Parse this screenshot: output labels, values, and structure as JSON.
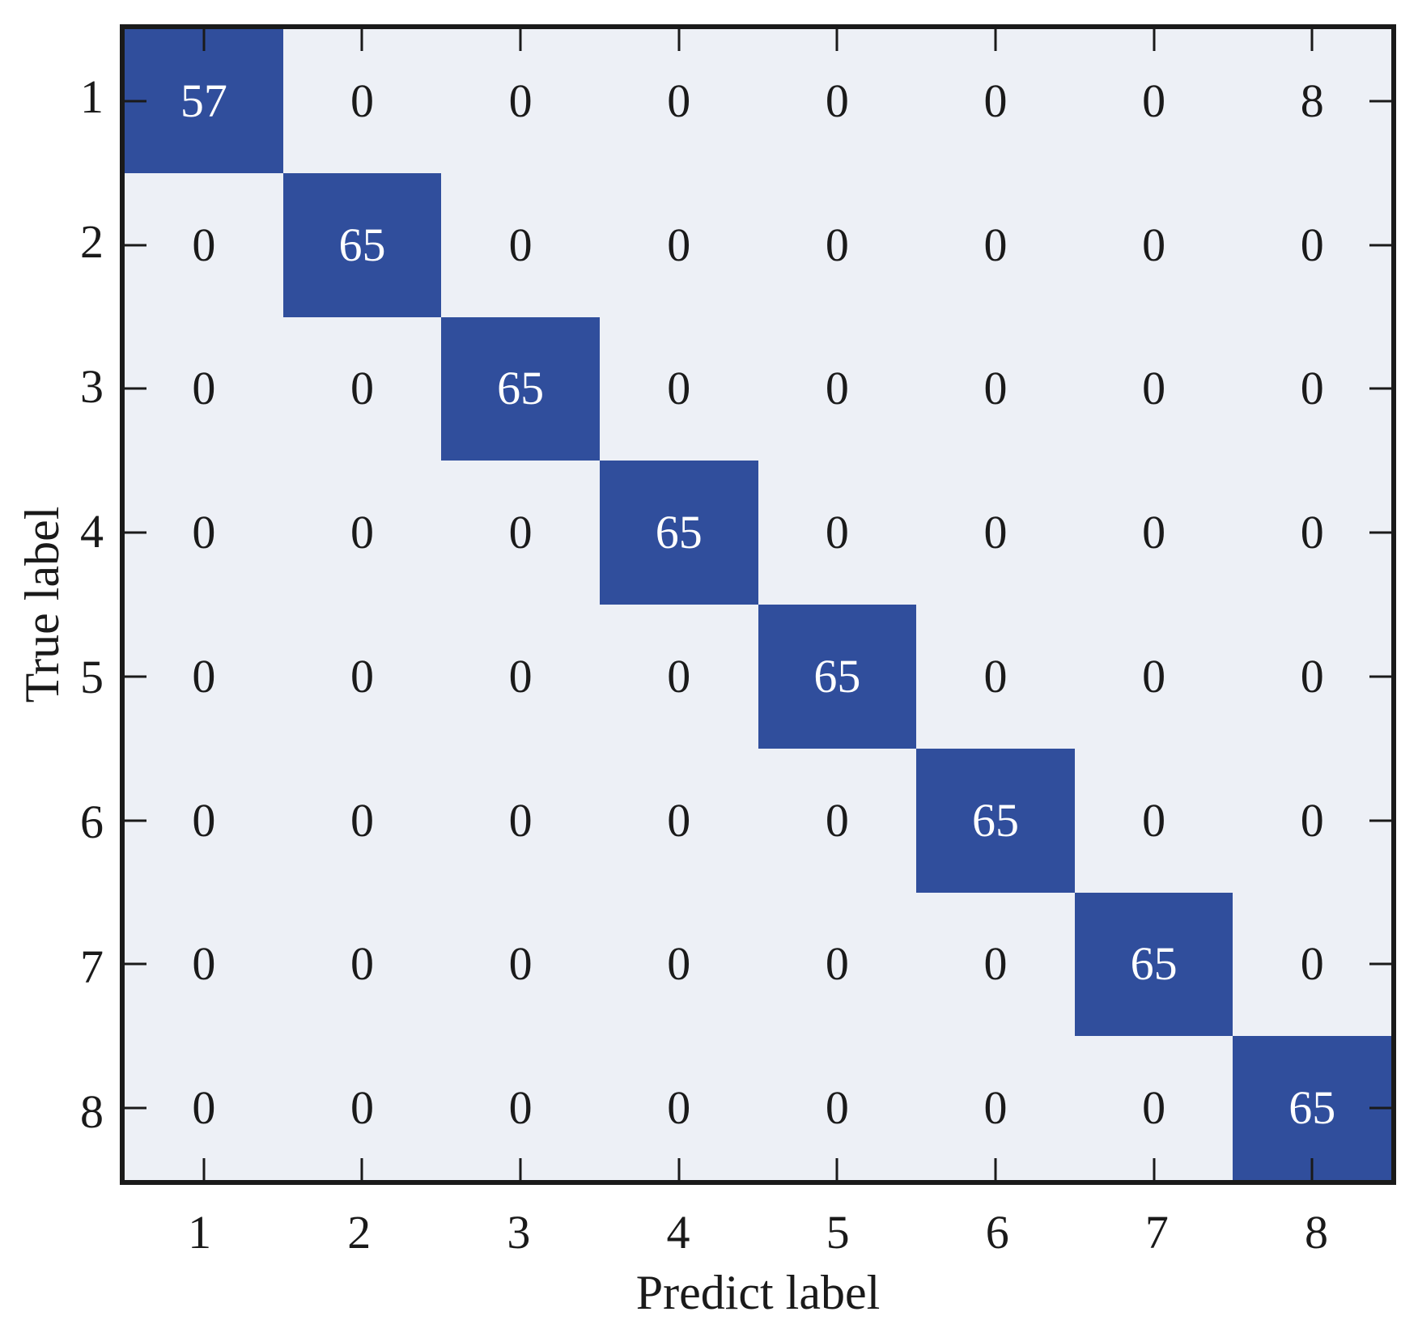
{
  "chart_data": {
    "type": "heatmap",
    "subtype": "confusion-matrix",
    "xlabel": "Predict label",
    "ylabel": "True label",
    "x_tick_labels": [
      "1",
      "2",
      "3",
      "4",
      "5",
      "6",
      "7",
      "8"
    ],
    "y_tick_labels": [
      "1",
      "2",
      "3",
      "4",
      "5",
      "6",
      "7",
      "8"
    ],
    "matrix": [
      [
        57,
        0,
        0,
        0,
        0,
        0,
        0,
        8
      ],
      [
        0,
        65,
        0,
        0,
        0,
        0,
        0,
        0
      ],
      [
        0,
        0,
        65,
        0,
        0,
        0,
        0,
        0
      ],
      [
        0,
        0,
        0,
        65,
        0,
        0,
        0,
        0
      ],
      [
        0,
        0,
        0,
        0,
        65,
        0,
        0,
        0
      ],
      [
        0,
        0,
        0,
        0,
        0,
        65,
        0,
        0
      ],
      [
        0,
        0,
        0,
        0,
        0,
        0,
        65,
        0
      ],
      [
        0,
        0,
        0,
        0,
        0,
        0,
        0,
        65
      ]
    ],
    "value_range": [
      0,
      65
    ],
    "layout": {
      "grid": "off",
      "legend": "none",
      "ticks": "inward-all-sides"
    },
    "colors": {
      "high_cell_fill": "#304E9C",
      "low_cell_fill": "#EDF0F6",
      "text_on_high": "#FFFFFF",
      "text_on_low": "#1A1A1A",
      "axis_color": "#1A1A1A",
      "figure_background": "#FFFFFF"
    }
  }
}
